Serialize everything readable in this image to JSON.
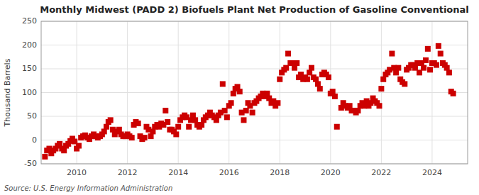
{
  "chart_data": {
    "type": "scatter",
    "title": "Monthly Midwest (PADD 2) Biofuels Plant Net Production of Gasoline Conventional",
    "ylabel": "Thousand Barrels",
    "source": "Source: U.S. Energy Information Administration",
    "color": "#cc0000",
    "marker": "square",
    "grid": true,
    "xlim": [
      2008.6,
      2025.4
    ],
    "xticks": [
      2010,
      2012,
      2014,
      2016,
      2018,
      2020,
      2022,
      2024
    ],
    "ylim": [
      -50,
      250
    ],
    "yticks": [
      -50,
      0,
      50,
      100,
      150,
      200,
      250
    ],
    "x": [
      2008.75,
      2008.83,
      2008.92,
      2009.0,
      2009.08,
      2009.17,
      2009.25,
      2009.33,
      2009.42,
      2009.5,
      2009.58,
      2009.67,
      2009.75,
      2009.83,
      2009.92,
      2010.0,
      2010.08,
      2010.17,
      2010.25,
      2010.33,
      2010.42,
      2010.5,
      2010.58,
      2010.67,
      2010.75,
      2010.83,
      2010.92,
      2011.0,
      2011.08,
      2011.17,
      2011.25,
      2011.33,
      2011.42,
      2011.5,
      2011.58,
      2011.67,
      2011.75,
      2011.83,
      2011.92,
      2012.0,
      2012.08,
      2012.17,
      2012.25,
      2012.33,
      2012.42,
      2012.5,
      2012.58,
      2012.67,
      2012.75,
      2012.83,
      2012.92,
      2013.0,
      2013.08,
      2013.17,
      2013.25,
      2013.33,
      2013.42,
      2013.5,
      2013.58,
      2013.67,
      2013.75,
      2013.83,
      2013.92,
      2014.0,
      2014.08,
      2014.17,
      2014.25,
      2014.33,
      2014.42,
      2014.5,
      2014.58,
      2014.67,
      2014.75,
      2014.83,
      2014.92,
      2015.0,
      2015.08,
      2015.17,
      2015.25,
      2015.33,
      2015.42,
      2015.5,
      2015.58,
      2015.67,
      2015.75,
      2015.83,
      2015.92,
      2016.0,
      2016.08,
      2016.17,
      2016.25,
      2016.33,
      2016.42,
      2016.5,
      2016.58,
      2016.67,
      2016.75,
      2016.83,
      2016.92,
      2017.0,
      2017.08,
      2017.17,
      2017.25,
      2017.33,
      2017.42,
      2017.5,
      2017.58,
      2017.67,
      2017.75,
      2017.83,
      2017.92,
      2018.0,
      2018.08,
      2018.17,
      2018.25,
      2018.33,
      2018.42,
      2018.5,
      2018.58,
      2018.67,
      2018.75,
      2018.83,
      2018.92,
      2019.0,
      2019.08,
      2019.17,
      2019.25,
      2019.33,
      2019.42,
      2019.5,
      2019.58,
      2019.67,
      2019.75,
      2019.83,
      2019.92,
      2020.0,
      2020.08,
      2020.17,
      2020.25,
      2020.42,
      2020.5,
      2020.58,
      2020.67,
      2020.75,
      2020.83,
      2020.92,
      2021.0,
      2021.08,
      2021.17,
      2021.25,
      2021.33,
      2021.42,
      2021.5,
      2021.58,
      2021.67,
      2021.75,
      2021.83,
      2021.92,
      2022.0,
      2022.08,
      2022.17,
      2022.25,
      2022.33,
      2022.42,
      2022.5,
      2022.58,
      2022.67,
      2022.75,
      2022.83,
      2022.92,
      2023.0,
      2023.08,
      2023.17,
      2023.25,
      2023.33,
      2023.42,
      2023.5,
      2023.58,
      2023.67,
      2023.75,
      2023.83,
      2023.92,
      2024.0,
      2024.08,
      2024.17,
      2024.25,
      2024.33,
      2024.42,
      2024.5,
      2024.58,
      2024.67,
      2024.75,
      2024.83
    ],
    "values": [
      -35,
      -22,
      -18,
      -28,
      -22,
      -18,
      -12,
      -8,
      -18,
      -22,
      -12,
      -8,
      -2,
      3,
      -3,
      -18,
      -12,
      5,
      8,
      10,
      5,
      2,
      8,
      12,
      8,
      5,
      8,
      12,
      18,
      28,
      38,
      42,
      22,
      12,
      18,
      22,
      12,
      8,
      8,
      12,
      8,
      5,
      32,
      38,
      35,
      8,
      2,
      5,
      28,
      22,
      8,
      18,
      28,
      32,
      28,
      35,
      32,
      62,
      38,
      22,
      22,
      18,
      12,
      28,
      42,
      48,
      52,
      48,
      28,
      42,
      52,
      42,
      32,
      28,
      32,
      42,
      48,
      52,
      58,
      52,
      48,
      42,
      52,
      58,
      118,
      62,
      48,
      72,
      78,
      98,
      108,
      112,
      102,
      58,
      42,
      62,
      78,
      72,
      58,
      78,
      82,
      88,
      92,
      98,
      92,
      98,
      88,
      78,
      82,
      72,
      78,
      128,
      142,
      148,
      152,
      182,
      162,
      162,
      152,
      162,
      132,
      138,
      128,
      132,
      128,
      142,
      152,
      132,
      128,
      118,
      108,
      138,
      142,
      138,
      132,
      98,
      102,
      92,
      28,
      68,
      78,
      72,
      68,
      72,
      62,
      62,
      58,
      62,
      72,
      78,
      72,
      82,
      72,
      78,
      88,
      82,
      78,
      72,
      108,
      128,
      138,
      142,
      148,
      182,
      152,
      142,
      152,
      128,
      122,
      118,
      148,
      152,
      158,
      158,
      152,
      162,
      142,
      162,
      152,
      168,
      192,
      148,
      162,
      162,
      158,
      198,
      182,
      162,
      158,
      152,
      142,
      102,
      98
    ]
  }
}
